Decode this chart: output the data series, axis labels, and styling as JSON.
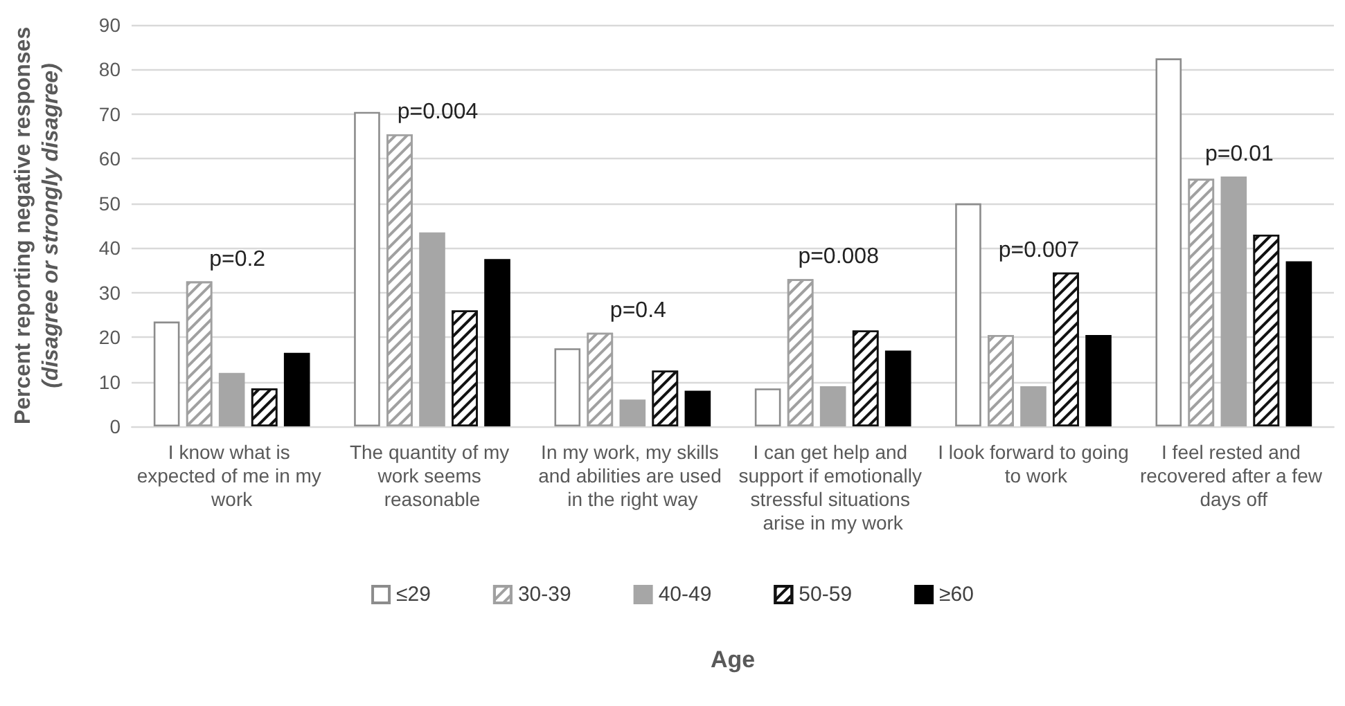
{
  "chart_data": {
    "type": "bar",
    "xlabel": "Age",
    "ylabel": "Percent reporting negative responses\n(disagree or strongly disagree)",
    "categories": [
      "I know what is expected of me in my work",
      "The quantity of my work seems reasonable",
      "In my work, my skills and abilities are used in the right way",
      "I can get help and support if emotionally stressful situations arise in my work",
      "I look forward to going to work",
      "I feel rested and recovered after a few days off"
    ],
    "series": [
      {
        "name": "≤29",
        "color": "#ffffff",
        "values": [
          23.5,
          70.5,
          17.5,
          8.5,
          50,
          82.5
        ]
      },
      {
        "name": "30-39",
        "color": "#a0a0a0",
        "values": [
          32.5,
          65.5,
          21,
          33,
          20.5,
          55.5
        ]
      },
      {
        "name": "40-49",
        "color": "#a6a6a6",
        "values": [
          12,
          43.5,
          6,
          9,
          9,
          56
        ]
      },
      {
        "name": "50-59",
        "color": "#111111",
        "values": [
          8.5,
          26,
          12.5,
          21.5,
          34.5,
          43
        ]
      },
      {
        "name": "≥60",
        "color": "#000000",
        "values": [
          16.5,
          37.5,
          8,
          17,
          20.5,
          37
        ]
      }
    ],
    "ylim": [
      0,
      90
    ],
    "yticks": [
      0,
      10,
      20,
      30,
      40,
      50,
      60,
      70,
      80,
      90
    ],
    "grid": "y",
    "legend": "bottom",
    "annotations": [
      "p=0.2",
      "p=0.004",
      "p=0.4",
      "p=0.008",
      "p=0.007",
      "p=0.01"
    ]
  }
}
